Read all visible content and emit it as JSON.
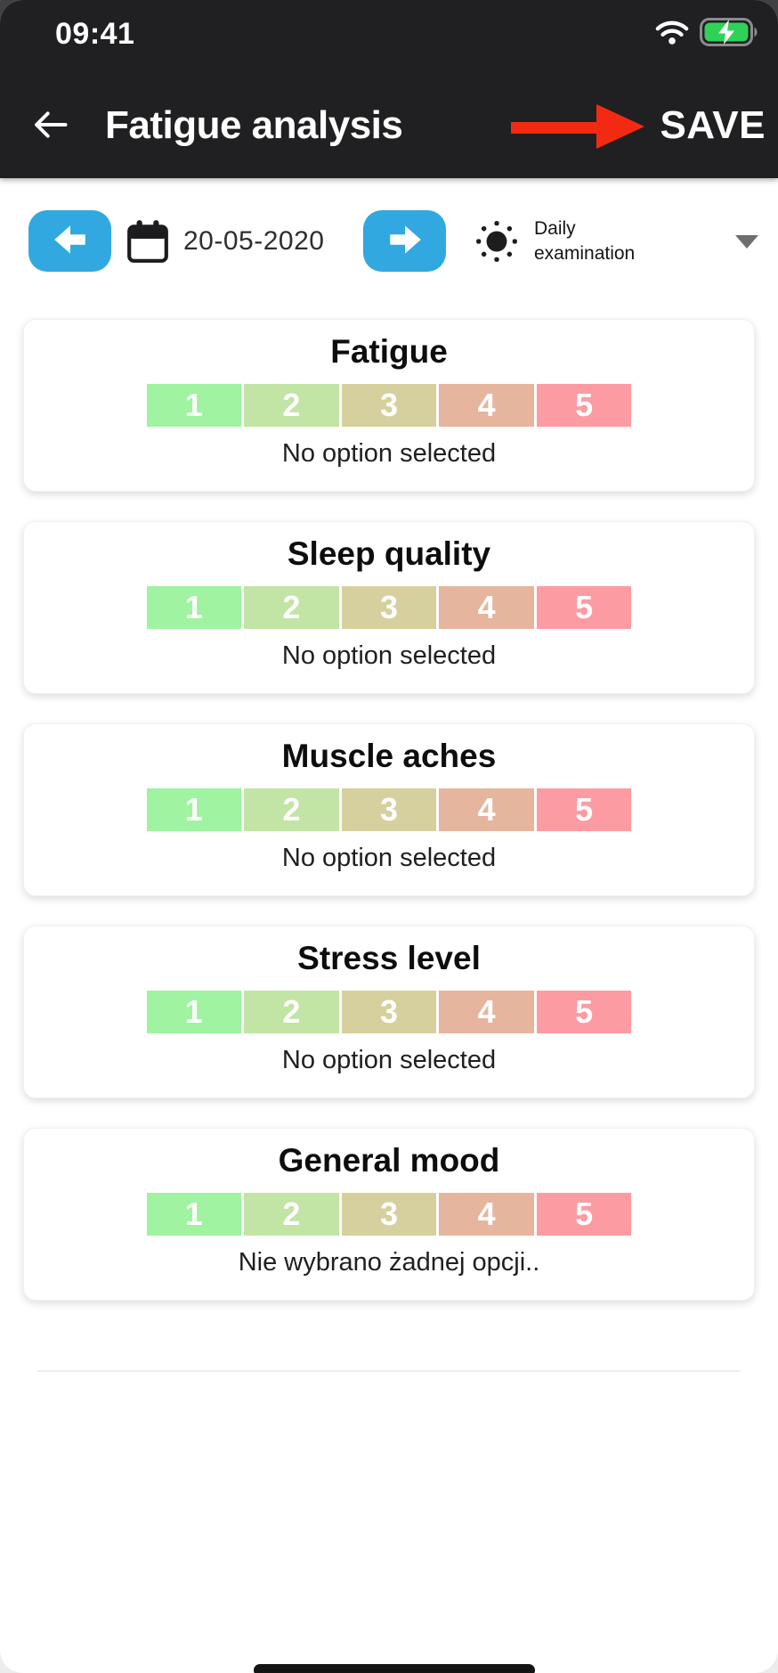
{
  "colors": {
    "accent_blue": "#31a8e0",
    "annotation_red": "#f32a12",
    "battery_green": "#30d158",
    "header_bg": "#202022",
    "scale_colors": [
      "#9ff3a1",
      "#c2e4a5",
      "#d5d09d",
      "#e5b59e",
      "#fd9ba2"
    ]
  },
  "status_bar": {
    "time": "09:41"
  },
  "header": {
    "title": "Fatigue analysis",
    "save_label": "SAVE"
  },
  "toolbar": {
    "date": "20-05-2020",
    "exam_type_label": "Daily examination"
  },
  "cards": [
    {
      "title": "Fatigue",
      "options": [
        "1",
        "2",
        "3",
        "4",
        "5"
      ],
      "status": "No option selected"
    },
    {
      "title": "Sleep quality",
      "options": [
        "1",
        "2",
        "3",
        "4",
        "5"
      ],
      "status": "No option selected"
    },
    {
      "title": "Muscle aches",
      "options": [
        "1",
        "2",
        "3",
        "4",
        "5"
      ],
      "status": "No option selected"
    },
    {
      "title": "Stress level",
      "options": [
        "1",
        "2",
        "3",
        "4",
        "5"
      ],
      "status": "No option selected"
    },
    {
      "title": "General mood",
      "options": [
        "1",
        "2",
        "3",
        "4",
        "5"
      ],
      "status": "Nie wybrano żadnej opcji.."
    }
  ]
}
